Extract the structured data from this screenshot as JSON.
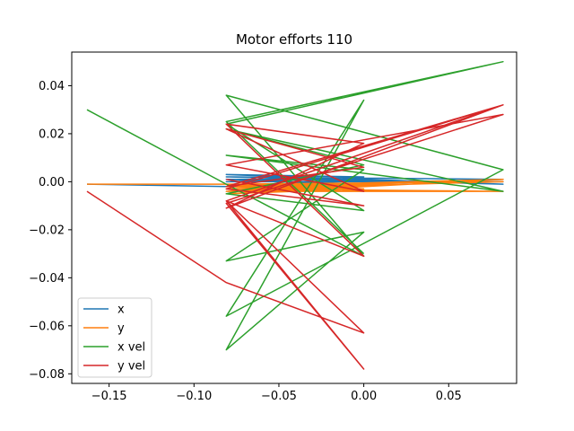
{
  "chart_data": {
    "type": "line",
    "title": "Motor efforts 110",
    "xlabel": "",
    "ylabel": "",
    "xlim": [
      -0.172,
      0.09
    ],
    "ylim": [
      -0.084,
      0.054
    ],
    "xticks": [
      -0.15,
      -0.1,
      -0.05,
      0.0,
      0.05
    ],
    "xtick_labels": [
      "−0.15",
      "−0.10",
      "−0.05",
      "0.00",
      "0.05"
    ],
    "yticks": [
      -0.08,
      -0.06,
      -0.04,
      -0.02,
      0.0,
      0.02,
      0.04
    ],
    "ytick_labels": [
      "−0.08",
      "−0.06",
      "−0.04",
      "−0.02",
      "0.00",
      "0.02",
      "0.04"
    ],
    "grid": false,
    "legend_position": "lower-left",
    "series": [
      {
        "name": "x",
        "color": "#1f77b4",
        "x": [
          -0.163,
          -0.081,
          0.0,
          -0.081,
          0.082,
          -0.081,
          0.0,
          -0.081,
          0.082,
          -0.081,
          0.0,
          0.082,
          -0.081,
          0.0,
          -0.081
        ],
        "y": [
          -0.001,
          -0.002,
          0.001,
          0.002,
          -0.001,
          0.003,
          0.002,
          0.0,
          0.0,
          0.001,
          -0.001,
          0.001,
          0.002,
          0.001,
          0.001
        ]
      },
      {
        "name": "y",
        "color": "#ff7f0e",
        "x": [
          -0.163,
          -0.081,
          0.0,
          -0.081,
          0.082,
          -0.081,
          0.0,
          -0.081,
          0.0,
          -0.081,
          0.0,
          -0.081,
          0.082,
          -0.081,
          0.0,
          -0.081,
          0.082,
          -0.081,
          0.0,
          -0.081,
          0.0,
          -0.081,
          0.082,
          -0.081
        ],
        "y": [
          -0.001,
          -0.001,
          -0.004,
          -0.003,
          0.001,
          -0.005,
          -0.003,
          -0.002,
          -0.004,
          -0.001,
          -0.002,
          -0.003,
          -0.004,
          -0.004,
          -0.003,
          -0.001,
          0.0,
          -0.003,
          -0.002,
          -0.004,
          -0.001,
          -0.002,
          0.001,
          -0.005
        ]
      },
      {
        "name": "x vel",
        "color": "#2ca02c",
        "x": [
          -0.163,
          -0.081,
          0.0,
          -0.081,
          0.082,
          -0.081,
          0.0,
          -0.081,
          0.0,
          -0.081,
          0.0,
          -0.081,
          0.082,
          -0.081,
          0.0,
          -0.081,
          0.0,
          -0.081,
          0.082,
          -0.081,
          0.0
        ],
        "y": [
          0.03,
          -0.001,
          -0.031,
          0.036,
          0.005,
          -0.056,
          0.034,
          -0.07,
          -0.021,
          -0.033,
          0.005,
          0.011,
          -0.004,
          0.022,
          0.007,
          -0.005,
          -0.012,
          0.024,
          0.05,
          0.025,
          -0.03
        ]
      },
      {
        "name": "y vel",
        "color": "#d62728",
        "x": [
          -0.163,
          -0.081,
          0.0,
          -0.081,
          0.082,
          -0.081,
          0.0,
          -0.081,
          0.0,
          -0.081,
          0.0,
          -0.081,
          0.082,
          -0.081,
          0.0,
          -0.081,
          0.0,
          -0.081,
          0.082,
          -0.081,
          0.0,
          -0.081
        ],
        "y": [
          -0.004,
          -0.042,
          -0.063,
          -0.008,
          0.032,
          -0.011,
          0.016,
          0.024,
          -0.031,
          -0.008,
          -0.078,
          -0.009,
          0.028,
          0.007,
          -0.004,
          0.022,
          0.006,
          -0.002,
          0.032,
          -0.003,
          -0.01,
          0.001
        ]
      }
    ]
  }
}
